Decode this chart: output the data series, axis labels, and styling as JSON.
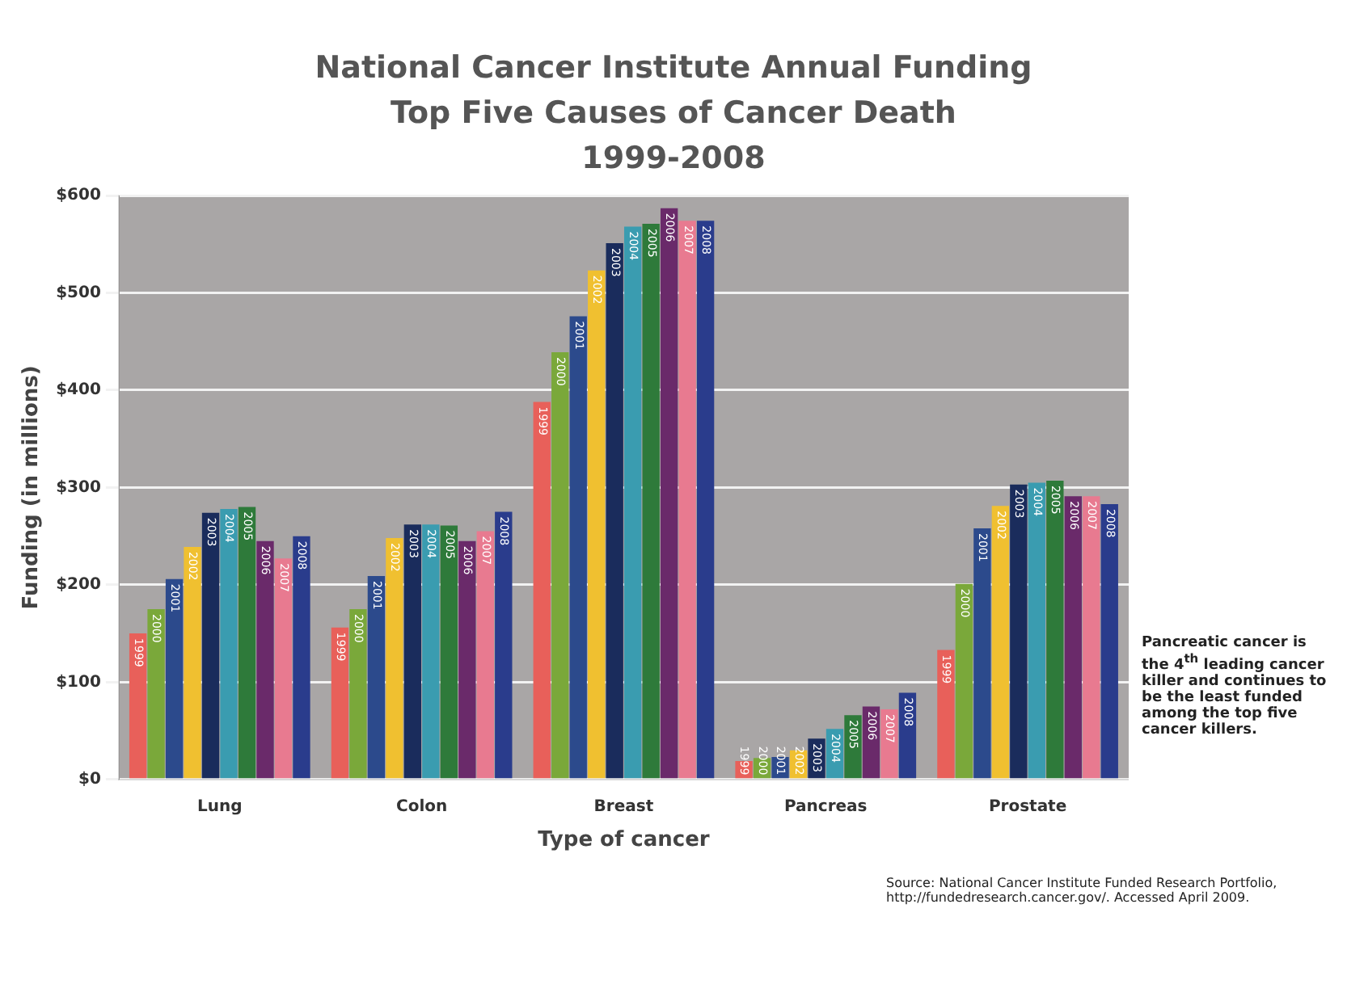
{
  "chart_data": {
    "type": "bar",
    "title": "National Cancer Institute Annual Funding\nTop Five Causes of Cancer Death\n1999-2008",
    "xlabel": "Type of cancer",
    "ylabel": "Funding (in millions)",
    "categories": [
      "Lung",
      "Colon",
      "Breast",
      "Pancreas",
      "Prostate"
    ],
    "series": [
      {
        "name": "1999",
        "color": "#e8605a",
        "values": [
          150,
          156,
          388,
          19,
          133
        ]
      },
      {
        "name": "2000",
        "color": "#7aa83a",
        "values": [
          175,
          175,
          439,
          22,
          201
        ]
      },
      {
        "name": "2001",
        "color": "#2c4a8c",
        "values": [
          206,
          209,
          476,
          23,
          258
        ]
      },
      {
        "name": "2002",
        "color": "#f0c030",
        "values": [
          239,
          248,
          523,
          30,
          281
        ]
      },
      {
        "name": "2003",
        "color": "#1a2c5c",
        "values": [
          274,
          262,
          551,
          42,
          303
        ]
      },
      {
        "name": "2004",
        "color": "#3a9cb0",
        "values": [
          278,
          262,
          568,
          52,
          305
        ]
      },
      {
        "name": "2005",
        "color": "#2e7a3a",
        "values": [
          280,
          261,
          571,
          66,
          307
        ]
      },
      {
        "name": "2006",
        "color": "#6a2a6a",
        "values": [
          245,
          245,
          587,
          75,
          291
        ]
      },
      {
        "name": "2007",
        "color": "#e87a90",
        "values": [
          227,
          255,
          574,
          72,
          291
        ]
      },
      {
        "name": "2008",
        "color": "#2a3c8c",
        "values": [
          250,
          275,
          574,
          89,
          283
        ]
      }
    ],
    "ylim": [
      0,
      600
    ],
    "yticks": [
      {
        "value": 0,
        "label": "$0"
      },
      {
        "value": 100,
        "label": "$100"
      },
      {
        "value": 200,
        "label": "$200"
      },
      {
        "value": 300,
        "label": "$300"
      },
      {
        "value": 400,
        "label": "$400"
      },
      {
        "value": 500,
        "label": "$500"
      },
      {
        "value": 600,
        "label": "$600"
      }
    ],
    "grid": "y",
    "annotations": [
      "Pancreatic cancer is the 4$^{th}$ leading cancer killer and continues to be the least funded among the top five cancer killers.",
      "Source: National Cancer Institute Funded Research Portfolio, http://fundedresearch.cancer.gov/. Accessed April 2009."
    ]
  }
}
